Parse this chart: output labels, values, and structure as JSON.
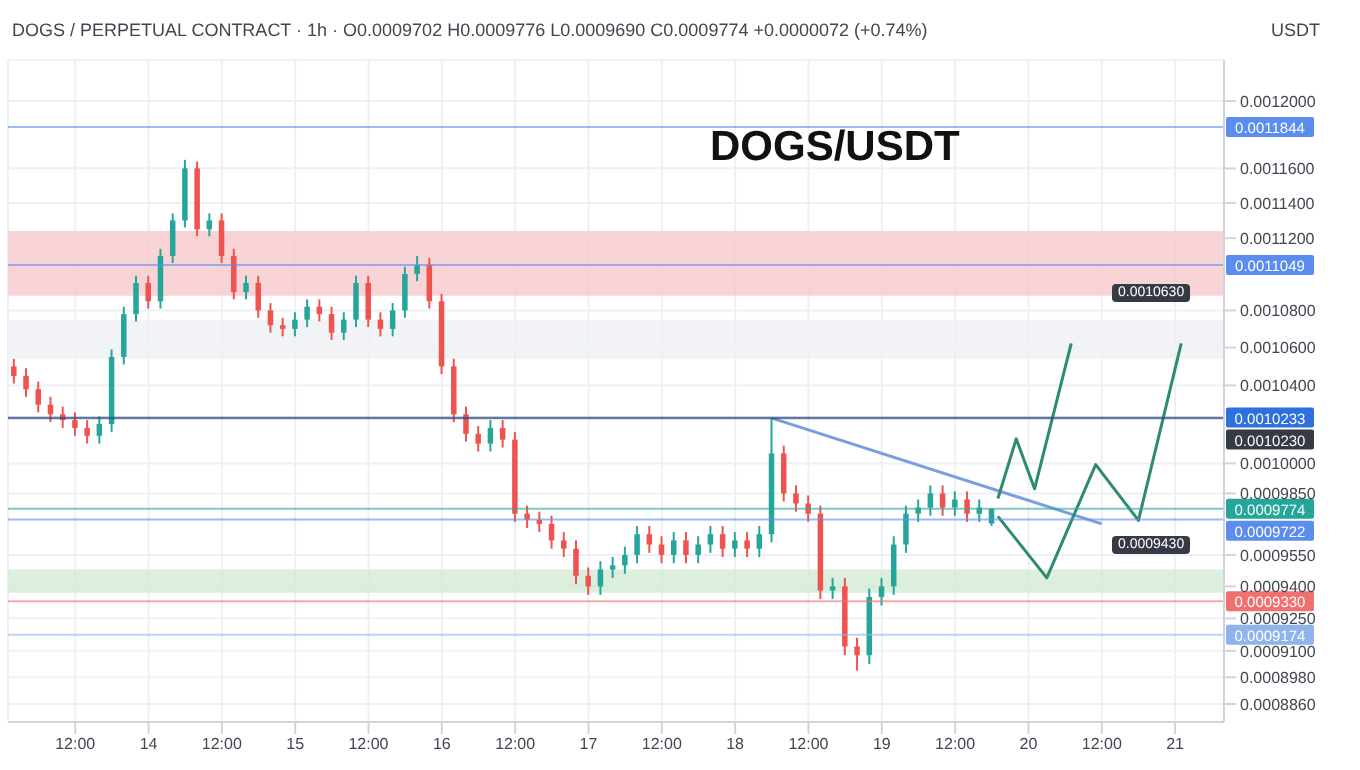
{
  "chart_data": {
    "type": "candlestick",
    "title": "DOGS/USDT",
    "subtitle": "DOGS / PERPETUAL CONTRACT · 1h · O0.0009702 H0.0009776 L0.0009690 C0.0009774 +0.0000072 (+0.74%)",
    "ylabel": "USDT",
    "log": true,
    "grid": true,
    "x": [
      "--09-13T02:00",
      "--09-13T04:00",
      "--09-13T06:00",
      "--09-13T08:00",
      "--09-13T10:00",
      "--09-13T12:00",
      "--09-13T14:00",
      "--09-13T16:00",
      "--09-13T18:00",
      "--09-13T20:00",
      "--09-13T22:00",
      "--09-14T00:00",
      "--09-14T02:00",
      "--09-14T04:00",
      "--09-14T06:00",
      "--09-14T08:00",
      "--09-14T10:00",
      "--09-14T12:00",
      "--09-14T14:00",
      "--09-14T16:00",
      "--09-14T18:00",
      "--09-14T20:00",
      "--09-14T22:00",
      "--09-15T00:00",
      "--09-15T02:00",
      "--09-15T04:00",
      "--09-15T06:00",
      "--09-15T08:00",
      "--09-15T10:00",
      "--09-15T12:00",
      "--09-15T14:00",
      "--09-15T16:00",
      "--09-15T18:00",
      "--09-15T20:00",
      "--09-15T22:00",
      "--09-16T00:00",
      "--09-16T02:00",
      "--09-16T04:00",
      "--09-16T06:00",
      "--09-16T08:00",
      "--09-16T10:00",
      "--09-16T12:00",
      "--09-16T14:00",
      "--09-16T16:00",
      "--09-16T18:00",
      "--09-16T20:00",
      "--09-16T22:00",
      "--09-17T00:00",
      "--09-17T02:00",
      "--09-17T04:00",
      "--09-17T06:00",
      "--09-17T08:00",
      "--09-17T10:00",
      "--09-17T12:00",
      "--09-17T14:00",
      "--09-17T16:00",
      "--09-17T18:00",
      "--09-17T20:00",
      "--09-17T22:00",
      "--09-18T00:00",
      "--09-18T02:00",
      "--09-18T04:00",
      "--09-18T06:00",
      "--09-18T08:00",
      "--09-18T10:00",
      "--09-18T12:00",
      "--09-18T14:00",
      "--09-18T16:00",
      "--09-18T18:00",
      "--09-18T20:00",
      "--09-18T22:00",
      "--09-19T00:00",
      "--09-19T02:00",
      "--09-19T04:00",
      "--09-19T06:00",
      "--09-19T08:00",
      "--09-19T10:00",
      "--09-19T12:00",
      "--09-19T14:00",
      "--09-19T16:00",
      "--09-19T18:00"
    ],
    "ohlc": [
      [
        0.00105,
        0.001054,
        0.001041,
        0.001045
      ],
      [
        0.001045,
        0.001049,
        0.001034,
        0.001038
      ],
      [
        0.001038,
        0.001042,
        0.001026,
        0.00103
      ],
      [
        0.00103,
        0.001034,
        0.001021,
        0.001025
      ],
      [
        0.001025,
        0.001029,
        0.001018,
        0.001022
      ],
      [
        0.001022,
        0.001026,
        0.001014,
        0.001018
      ],
      [
        0.001018,
        0.001022,
        0.00101,
        0.001014
      ],
      [
        0.001014,
        0.001024,
        0.00101,
        0.00102
      ],
      [
        0.00102,
        0.001059,
        0.001016,
        0.001055
      ],
      [
        0.001055,
        0.001082,
        0.001051,
        0.001078
      ],
      [
        0.001078,
        0.001099,
        0.001074,
        0.001095
      ],
      [
        0.001095,
        0.001099,
        0.001081,
        0.001085
      ],
      [
        0.001085,
        0.001114,
        0.001081,
        0.00111
      ],
      [
        0.00111,
        0.001134,
        0.001106,
        0.00113
      ],
      [
        0.00113,
        0.001165,
        0.001126,
        0.00116
      ],
      [
        0.00116,
        0.001164,
        0.001121,
        0.001125
      ],
      [
        0.001125,
        0.001134,
        0.001121,
        0.00113
      ],
      [
        0.00113,
        0.001134,
        0.001106,
        0.00111
      ],
      [
        0.00111,
        0.001114,
        0.001086,
        0.00109
      ],
      [
        0.00109,
        0.001099,
        0.001086,
        0.001095
      ],
      [
        0.001095,
        0.001099,
        0.001076,
        0.00108
      ],
      [
        0.00108,
        0.001084,
        0.001068,
        0.001072
      ],
      [
        0.001072,
        0.001076,
        0.001066,
        0.00107
      ],
      [
        0.00107,
        0.001079,
        0.001066,
        0.001075
      ],
      [
        0.001075,
        0.001086,
        0.001071,
        0.001082
      ],
      [
        0.001082,
        0.001086,
        0.001074,
        0.001078
      ],
      [
        0.001078,
        0.001082,
        0.001064,
        0.001068
      ],
      [
        0.001068,
        0.001079,
        0.001064,
        0.001075
      ],
      [
        0.001075,
        0.001099,
        0.001071,
        0.001095
      ],
      [
        0.001095,
        0.001099,
        0.001071,
        0.001075
      ],
      [
        0.001075,
        0.001079,
        0.001066,
        0.00107
      ],
      [
        0.00107,
        0.001084,
        0.001066,
        0.00108
      ],
      [
        0.00108,
        0.001104,
        0.001076,
        0.0011
      ],
      [
        0.0011,
        0.00111,
        0.001096,
        0.001105
      ],
      [
        0.001105,
        0.001109,
        0.001081,
        0.001085
      ],
      [
        0.001085,
        0.001089,
        0.001046,
        0.00105
      ],
      [
        0.00105,
        0.001054,
        0.001021,
        0.001025
      ],
      [
        0.001025,
        0.001029,
        0.001011,
        0.001015
      ],
      [
        0.001015,
        0.001019,
        0.001006,
        0.00101
      ],
      [
        0.00101,
        0.001022,
        0.001006,
        0.001018
      ],
      [
        0.001018,
        0.001022,
        0.001008,
        0.001012
      ],
      [
        0.001012,
        0.001016,
        0.000971,
        0.000975
      ],
      [
        0.000975,
        0.000979,
        0.000968,
        0.000972
      ],
      [
        0.000972,
        0.000976,
        0.000966,
        0.00097
      ],
      [
        0.00097,
        0.000974,
        0.000958,
        0.000962
      ],
      [
        0.000962,
        0.000966,
        0.000954,
        0.000958
      ],
      [
        0.000958,
        0.000962,
        0.000941,
        0.000945
      ],
      [
        0.000945,
        0.000949,
        0.000936,
        0.00094
      ],
      [
        0.00094,
        0.000952,
        0.000936,
        0.000948
      ],
      [
        0.000948,
        0.000954,
        0.000944,
        0.00095
      ],
      [
        0.00095,
        0.000959,
        0.000946,
        0.000955
      ],
      [
        0.000955,
        0.000969,
        0.000951,
        0.000965
      ],
      [
        0.000965,
        0.000969,
        0.000956,
        0.00096
      ],
      [
        0.00096,
        0.000964,
        0.000951,
        0.000955
      ],
      [
        0.000955,
        0.000966,
        0.000951,
        0.000962
      ],
      [
        0.000962,
        0.000966,
        0.000951,
        0.000955
      ],
      [
        0.000955,
        0.000964,
        0.000951,
        0.00096
      ],
      [
        0.00096,
        0.000969,
        0.000956,
        0.000965
      ],
      [
        0.000965,
        0.000969,
        0.000954,
        0.000958
      ],
      [
        0.000958,
        0.000966,
        0.000954,
        0.000962
      ],
      [
        0.000962,
        0.000966,
        0.000954,
        0.000958
      ],
      [
        0.000958,
        0.000969,
        0.000954,
        0.000965
      ],
      [
        0.000965,
        0.001023,
        0.000961,
        0.001005
      ],
      [
        0.001005,
        0.001009,
        0.000981,
        0.000985
      ],
      [
        0.000985,
        0.000989,
        0.000976,
        0.00098
      ],
      [
        0.00098,
        0.000984,
        0.000971,
        0.000975
      ],
      [
        0.000975,
        0.000979,
        0.000934,
        0.000938
      ],
      [
        0.000938,
        0.000944,
        0.000934,
        0.00094
      ],
      [
        0.00094,
        0.000944,
        0.000908,
        0.000912
      ],
      [
        0.000912,
        0.000916,
        0.000901,
        0.000908
      ],
      [
        0.000908,
        0.000939,
        0.000904,
        0.000935
      ],
      [
        0.000935,
        0.000944,
        0.000931,
        0.00094
      ],
      [
        0.00094,
        0.000964,
        0.000936,
        0.00096
      ],
      [
        0.00096,
        0.000979,
        0.000956,
        0.000975
      ],
      [
        0.000975,
        0.000982,
        0.000971,
        0.000978
      ],
      [
        0.000978,
        0.000989,
        0.000974,
        0.000985
      ],
      [
        0.000985,
        0.000989,
        0.000974,
        0.000978
      ],
      [
        0.000978,
        0.000986,
        0.000974,
        0.000982
      ],
      [
        0.000982,
        0.000986,
        0.000971,
        0.000975
      ],
      [
        0.000975,
        0.000982,
        0.000971,
        0.000978
      ],
      [
        0.0009702,
        0.0009776,
        0.000969,
        0.0009774
      ]
    ],
    "colors": [
      "#ef5350",
      "#ef5350",
      "#ef5350",
      "#ef5350",
      "#ef5350",
      "#ef5350",
      "#ef5350",
      "#26a69a",
      "#26a69a",
      "#26a69a",
      "#26a69a",
      "#ef5350",
      "#26a69a",
      "#26a69a",
      "#26a69a",
      "#ef5350",
      "#26a69a",
      "#ef5350",
      "#ef5350",
      "#26a69a",
      "#ef5350",
      "#ef5350",
      "#ef5350",
      "#26a69a",
      "#26a69a",
      "#ef5350",
      "#ef5350",
      "#26a69a",
      "#26a69a",
      "#ef5350",
      "#ef5350",
      "#26a69a",
      "#26a69a",
      "#26a69a",
      "#ef5350",
      "#ef5350",
      "#ef5350",
      "#ef5350",
      "#ef5350",
      "#26a69a",
      "#ef5350",
      "#ef5350",
      "#ef5350",
      "#ef5350",
      "#ef5350",
      "#ef5350",
      "#ef5350",
      "#ef5350",
      "#26a69a",
      "#26a69a",
      "#26a69a",
      "#26a69a",
      "#ef5350",
      "#ef5350",
      "#26a69a",
      "#ef5350",
      "#26a69a",
      "#26a69a",
      "#ef5350",
      "#26a69a",
      "#ef5350",
      "#26a69a",
      "#26a69a",
      "#ef5350",
      "#ef5350",
      "#ef5350",
      "#ef5350",
      "#26a69a",
      "#ef5350",
      "#ef5350",
      "#26a69a",
      "#26a69a",
      "#26a69a",
      "#26a69a",
      "#26a69a",
      "#26a69a",
      "#ef5350",
      "#26a69a",
      "#ef5350",
      "#26a69a",
      "#26a69a"
    ],
    "series": [
      {
        "type": "line",
        "color": "#7b9ee0",
        "x": [
          "--09-18T06:00",
          "--09-20T12:00"
        ],
        "values": [
          0.001023,
          0.00097
        ]
      },
      {
        "type": "line",
        "color": "#2e8b6e",
        "x": [
          "--09-19T19:00",
          "--09-19T22:00",
          "--09-20T01:00",
          "--09-20T07:00"
        ],
        "values": [
          0.0009825,
          0.0010124,
          0.0009873,
          0.0010622
        ]
      },
      {
        "type": "line",
        "color": "#2e8b6e",
        "x": [
          "--09-19T19:00",
          "--09-20T03:00",
          "--09-20T11:00",
          "--09-20T18:00",
          "--09-21T01:00"
        ],
        "values": [
          0.0009737,
          0.000944,
          0.0009994,
          0.0009717,
          0.0010622
        ]
      }
    ],
    "bands": [
      {
        "axis": "y",
        "from": 0.001088,
        "to": 0.001124,
        "color": "#f8c9cc"
      },
      {
        "axis": "y",
        "from": 0.001054,
        "to": 0.001075,
        "color": "#eef0f4"
      },
      {
        "axis": "y",
        "from": 0.000937,
        "to": 0.000948,
        "color": "#d3ead3"
      }
    ],
    "ref_lines": [
      {
        "axis": "y",
        "value": 0.0011844,
        "label": "0.0011844",
        "color": "#5b8def"
      },
      {
        "axis": "y",
        "value": 0.0011049,
        "label": "0.0011049",
        "color": "#5b8def"
      },
      {
        "axis": "y",
        "value": 0.0010233,
        "label": "0.0010233",
        "color": "#2f6fde"
      },
      {
        "axis": "y",
        "value": 0.001023,
        "label": "0.0010230",
        "color": "#363a45"
      },
      {
        "axis": "y",
        "value": 0.0009774,
        "label": "0.0009774",
        "color": "#26a69a"
      },
      {
        "axis": "y",
        "value": 0.0009722,
        "label": "0.0009722",
        "color": "#5b8def"
      },
      {
        "axis": "y",
        "value": 0.000933,
        "label": "0.0009330",
        "color": "#f07070"
      },
      {
        "axis": "y",
        "value": 0.0009174,
        "label": "0.0009174",
        "color": "#8fb4ec"
      }
    ],
    "annotations": [
      "0.0010630",
      "0.0009430"
    ],
    "xlim": [
      "--09-13T01:00",
      "--09-21T08:00"
    ],
    "xticks": [
      {
        "value": "--09-13T12:00",
        "label": "12:00"
      },
      {
        "value": "--09-14T00:00",
        "label": "14"
      },
      {
        "value": "--09-14T12:00",
        "label": "12:00"
      },
      {
        "value": "--09-15T00:00",
        "label": "15"
      },
      {
        "value": "--09-15T12:00",
        "label": "12:00"
      },
      {
        "value": "--09-16T00:00",
        "label": "16"
      },
      {
        "value": "--09-16T12:00",
        "label": "12:00"
      },
      {
        "value": "--09-17T00:00",
        "label": "17"
      },
      {
        "value": "--09-17T12:00",
        "label": "12:00"
      },
      {
        "value": "--09-18T00:00",
        "label": "18"
      },
      {
        "value": "--09-18T12:00",
        "label": "12:00"
      },
      {
        "value": "--09-19T00:00",
        "label": "19"
      },
      {
        "value": "--09-19T12:00",
        "label": "12:00"
      },
      {
        "value": "--09-20T00:00",
        "label": "20"
      },
      {
        "value": "--09-20T12:00",
        "label": "12:00"
      },
      {
        "value": "--09-21T00:00",
        "label": "21"
      }
    ],
    "ylim": [
      0.000878,
      0.001225
    ],
    "yticks": [
      {
        "value": 0.0012,
        "label": "0.0012000"
      },
      {
        "value": 0.00116,
        "label": "0.0011600"
      },
      {
        "value": 0.00114,
        "label": "0.0011400"
      },
      {
        "value": 0.00112,
        "label": "0.0011200"
      },
      {
        "value": 0.00108,
        "label": "0.0010800"
      },
      {
        "value": 0.00106,
        "label": "0.0010600"
      },
      {
        "value": 0.00104,
        "label": "0.0010400"
      },
      {
        "value": 0.001,
        "label": "0.0010000"
      },
      {
        "value": 0.000985,
        "label": "0.0009850"
      },
      {
        "value": 0.000955,
        "label": "0.0009550"
      },
      {
        "value": 0.00094,
        "label": "0.0009400"
      },
      {
        "value": 0.000925,
        "label": "0.0009250"
      },
      {
        "value": 0.00091,
        "label": "0.0009100"
      },
      {
        "value": 0.000898,
        "label": "0.0008980"
      },
      {
        "value": 0.000886,
        "label": "0.0008860"
      }
    ]
  }
}
